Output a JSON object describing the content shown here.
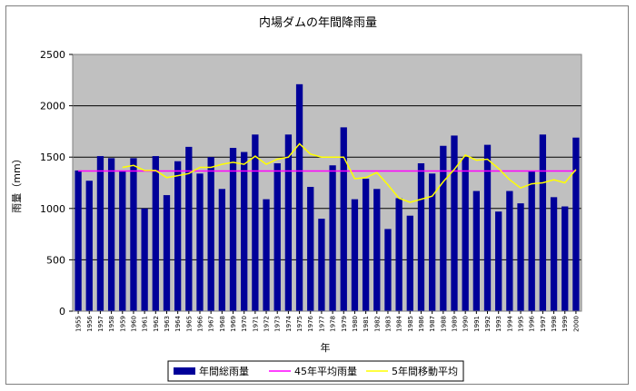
{
  "chart_data": {
    "type": "bar",
    "title": "内場ダムの年間降雨量",
    "xlabel": "年",
    "ylabel": "雨量（mm）",
    "ylim": [
      0,
      2500
    ],
    "yticks": [
      0,
      500,
      1000,
      1500,
      2000,
      2500
    ],
    "grid": true,
    "legend_position": "bottom",
    "categories": [
      "1955",
      "1956",
      "1957",
      "1958",
      "1959",
      "1960",
      "1961",
      "1962",
      "1963",
      "1964",
      "1965",
      "1966",
      "1967",
      "1968",
      "1969",
      "1970",
      "1971",
      "1972",
      "1973",
      "1974",
      "1975",
      "1976",
      "1977",
      "1978",
      "1979",
      "1980",
      "1981",
      "1982",
      "1983",
      "1984",
      "1985",
      "1986",
      "1987",
      "1988",
      "1989",
      "1990",
      "1991",
      "1992",
      "1993",
      "1994",
      "1995",
      "1996",
      "1997",
      "1998",
      "1999",
      "2000"
    ],
    "series": [
      {
        "name": "年間総雨量",
        "type": "bar",
        "color": "#000099",
        "values": [
          1370,
          1270,
          1510,
          1490,
          1370,
          1490,
          1000,
          1510,
          1130,
          1460,
          1600,
          1340,
          1500,
          1190,
          1590,
          1550,
          1720,
          1090,
          1440,
          1720,
          2210,
          1210,
          900,
          1420,
          1790,
          1090,
          1290,
          1190,
          800,
          1100,
          930,
          1440,
          1340,
          1610,
          1710,
          1500,
          1170,
          1620,
          970,
          1170,
          1050,
          1360,
          1720,
          1110,
          1020,
          1690
        ]
      },
      {
        "name": "45年平均雨量",
        "type": "line",
        "color": "#ff00ff",
        "values": [
          1365,
          1365,
          1365,
          1365,
          1365,
          1365,
          1365,
          1365,
          1365,
          1365,
          1365,
          1365,
          1365,
          1365,
          1365,
          1365,
          1365,
          1365,
          1365,
          1365,
          1365,
          1365,
          1365,
          1365,
          1365,
          1365,
          1365,
          1365,
          1365,
          1365,
          1365,
          1365,
          1365,
          1365,
          1365,
          1365,
          1365,
          1365,
          1365,
          1365,
          1365,
          1365,
          1365,
          1365,
          1365,
          1365
        ]
      },
      {
        "name": "5年間移動平均",
        "type": "line",
        "color": "#ffff00",
        "values": [
          null,
          null,
          null,
          null,
          1400,
          1420,
          1370,
          1370,
          1300,
          1320,
          1340,
          1400,
          1400,
          1430,
          1450,
          1430,
          1510,
          1430,
          1480,
          1500,
          1630,
          1530,
          1500,
          1500,
          1500,
          1290,
          1300,
          1350,
          1230,
          1100,
          1060,
          1090,
          1120,
          1260,
          1380,
          1520,
          1470,
          1480,
          1390,
          1280,
          1200,
          1240,
          1250,
          1280,
          1250,
          1380
        ]
      }
    ]
  },
  "colors": {
    "plot_background": "#c0c0c0",
    "gridline": "#000000",
    "bar": "#000099",
    "average_line": "#ff00ff",
    "moving_average_line": "#ffff00"
  }
}
